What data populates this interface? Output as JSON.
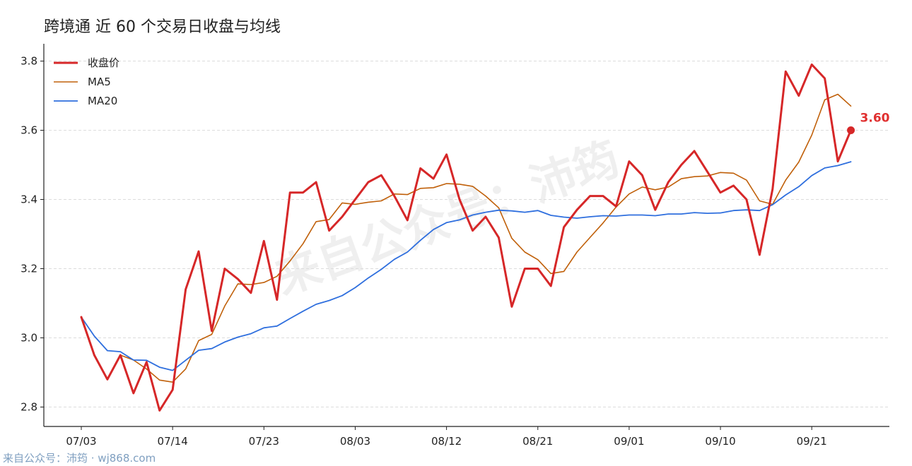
{
  "title": "跨境通 近 60 个交易日收盘与均线",
  "footer": "来自公众号：沛筠 · wj868.com",
  "watermark": "来自公众号：沛筠",
  "chart_data": {
    "type": "line",
    "title": "跨境通 近 60 个交易日收盘与均线",
    "xlabel": "",
    "ylabel": "",
    "ylim": [
      2.75,
      3.85
    ],
    "yticks": [
      2.8,
      3.0,
      3.2,
      3.4,
      3.6,
      3.8
    ],
    "xticks": [
      {
        "index": 0,
        "label": "07/03"
      },
      {
        "index": 7,
        "label": "07/14"
      },
      {
        "index": 14,
        "label": "07/23"
      },
      {
        "index": 21,
        "label": "08/03"
      },
      {
        "index": 28,
        "label": "08/12"
      },
      {
        "index": 35,
        "label": "08/21"
      },
      {
        "index": 42,
        "label": "09/01"
      },
      {
        "index": 49,
        "label": "09/10"
      },
      {
        "index": 56,
        "label": "09/21"
      }
    ],
    "grid": true,
    "legend_position": "top-left",
    "series": [
      {
        "name": "收盘价",
        "color": "#d62728",
        "values": [
          3.06,
          2.95,
          2.88,
          2.95,
          2.84,
          2.93,
          2.79,
          2.85,
          3.14,
          3.25,
          3.02,
          3.2,
          3.17,
          3.13,
          3.28,
          3.11,
          3.42,
          3.42,
          3.45,
          3.31,
          3.35,
          3.4,
          3.45,
          3.47,
          3.41,
          3.34,
          3.49,
          3.46,
          3.53,
          3.4,
          3.31,
          3.35,
          3.29,
          3.09,
          3.2,
          3.2,
          3.15,
          3.32,
          3.37,
          3.41,
          3.41,
          3.38,
          3.51,
          3.47,
          3.37,
          3.45,
          3.5,
          3.54,
          3.48,
          3.42,
          3.44,
          3.4,
          3.24,
          3.43,
          3.77,
          3.7,
          3.79,
          3.75,
          3.51,
          3.6
        ]
      },
      {
        "name": "MA5",
        "color": "#c0600a",
        "values": [
          3.06,
          2.95,
          2.88,
          2.95,
          2.936,
          2.91,
          2.878,
          2.872,
          2.91,
          2.992,
          3.01,
          3.092,
          3.156,
          3.154,
          3.16,
          3.178,
          3.222,
          3.272,
          3.336,
          3.342,
          3.39,
          3.386,
          3.392,
          3.396,
          3.416,
          3.414,
          3.432,
          3.434,
          3.446,
          3.444,
          3.438,
          3.41,
          3.376,
          3.288,
          3.248,
          3.226,
          3.186,
          3.192,
          3.248,
          3.29,
          3.332,
          3.378,
          3.416,
          3.436,
          3.428,
          3.436,
          3.46,
          3.466,
          3.468,
          3.478,
          3.476,
          3.456,
          3.396,
          3.386,
          3.456,
          3.508,
          3.586,
          3.688,
          3.704,
          3.67
        ]
      },
      {
        "name": "MA20",
        "color": "#2f6fde",
        "values": [
          3.06,
          3.005,
          2.963,
          2.96,
          2.936,
          2.935,
          2.915,
          2.906,
          2.935,
          2.964,
          2.969,
          2.988,
          3.002,
          3.012,
          3.029,
          3.034,
          3.056,
          3.077,
          3.097,
          3.108,
          3.122,
          3.145,
          3.173,
          3.198,
          3.227,
          3.248,
          3.282,
          3.313,
          3.333,
          3.341,
          3.355,
          3.363,
          3.369,
          3.367,
          3.363,
          3.368,
          3.354,
          3.349,
          3.346,
          3.35,
          3.353,
          3.352,
          3.355,
          3.355,
          3.353,
          3.358,
          3.358,
          3.362,
          3.36,
          3.361,
          3.368,
          3.37,
          3.368,
          3.385,
          3.413,
          3.437,
          3.469,
          3.491,
          3.498,
          3.509
        ]
      }
    ],
    "end_label": "3.60"
  }
}
